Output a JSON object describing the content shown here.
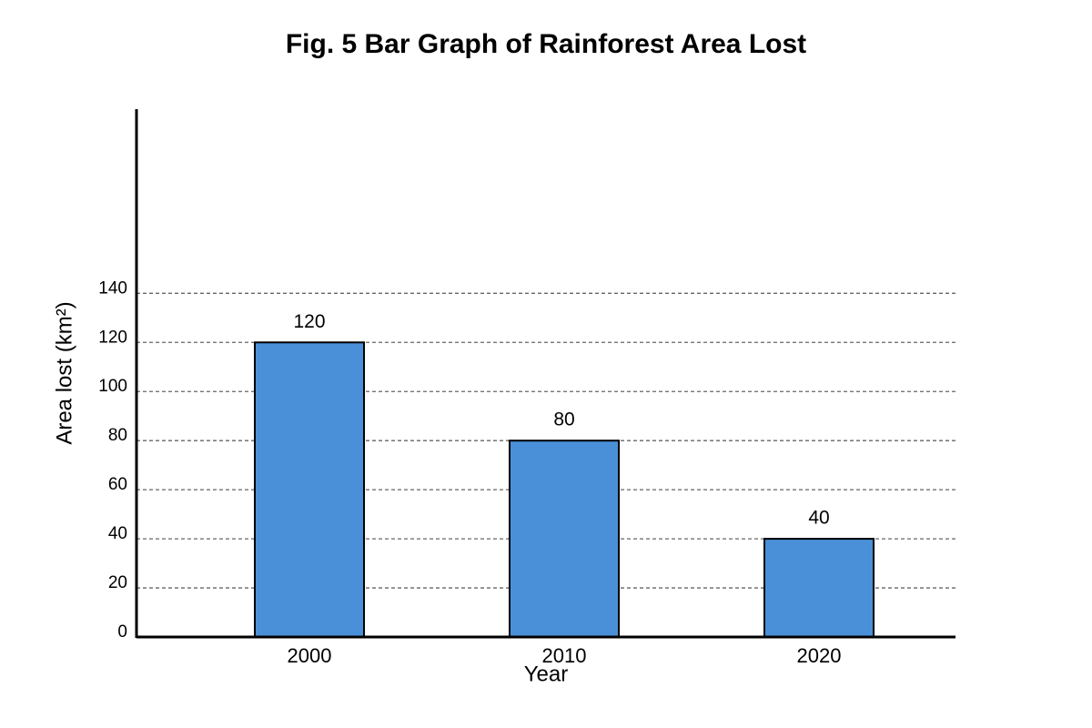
{
  "chart_data": {
    "type": "bar",
    "title": "Fig. 5 Bar Graph of Rainforest Area Lost",
    "x_label": "Year",
    "y_label": "Area lost (km²)",
    "categories": [
      "2000",
      "2010",
      "2020"
    ],
    "values": [
      120,
      80,
      40
    ],
    "color": "#4a90d9",
    "ylim": [
      0,
      215
    ],
    "yticks": [
      0,
      20,
      40,
      60,
      80,
      100,
      120,
      140
    ],
    "grid": true
  }
}
